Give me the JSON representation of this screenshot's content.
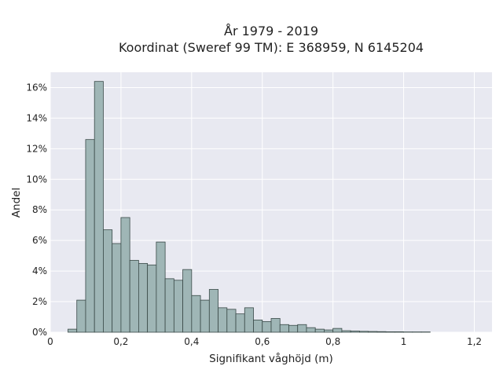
{
  "chart_data": {
    "type": "bar",
    "title_line1": "År 1979 - 2019",
    "title_line2": "Koordinat (Sweref 99 TM): E 368959, N 6145204",
    "xlabel": "Signifikant våghöjd (m)",
    "ylabel": "Andel",
    "xlim": [
      0,
      1.25
    ],
    "ylim": [
      0,
      0.17
    ],
    "bin_width": 0.025,
    "bin_start": 0.05,
    "values": [
      0.002,
      0.021,
      0.126,
      0.164,
      0.067,
      0.058,
      0.075,
      0.047,
      0.045,
      0.044,
      0.059,
      0.035,
      0.034,
      0.041,
      0.024,
      0.021,
      0.028,
      0.016,
      0.015,
      0.012,
      0.016,
      0.008,
      0.007,
      0.009,
      0.005,
      0.0045,
      0.005,
      0.003,
      0.002,
      0.0015,
      0.0025,
      0.001,
      0.0008,
      0.0006,
      0.0005,
      0.0004,
      0.0003,
      0.0003,
      0.0002,
      0.0002,
      0.0002
    ],
    "x_ticks": [
      0,
      0.2,
      0.4,
      0.6,
      0.8,
      1.0,
      1.2
    ],
    "x_tick_labels": [
      "0",
      "0,2",
      "0,4",
      "0,6",
      "0,8",
      "1",
      "1,2"
    ],
    "y_ticks": [
      0,
      0.02,
      0.04,
      0.06,
      0.08,
      0.1,
      0.12,
      0.14,
      0.16
    ],
    "y_tick_labels": [
      "0%",
      "2%",
      "4%",
      "6%",
      "8%",
      "10%",
      "12%",
      "14%",
      "16%"
    ],
    "grid": true,
    "colors": {
      "bar_fill": "#9fb6b6",
      "bar_edge": "#3a4a48",
      "plot_bg": "#e8e9f1",
      "grid": "#ffffff"
    }
  }
}
